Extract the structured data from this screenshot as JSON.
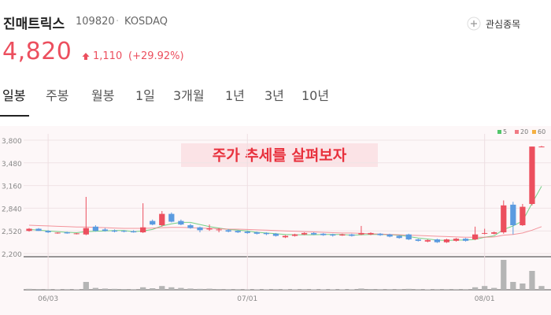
{
  "header": {
    "name": "진매트릭스",
    "code": "109820",
    "separator": "·",
    "market": "KOSDAQ",
    "watch_button": "관심종목"
  },
  "price": {
    "current": "4,820",
    "change": "1,110",
    "change_pct": "(+29.92%)"
  },
  "tabs": [
    "일봉",
    "주봉",
    "월봉",
    "1일",
    "3개월",
    "1년",
    "3년",
    "10년"
  ],
  "selected_tab": 0,
  "chart_data": {
    "type": "candlestick",
    "annotation": "주가 추세를 살펴보자",
    "categories": [
      null,
      null,
      "06/03",
      null,
      null,
      null,
      null,
      null,
      null,
      null,
      null,
      null,
      null,
      null,
      null,
      null,
      null,
      null,
      null,
      null,
      null,
      null,
      null,
      "07/01",
      null,
      null,
      null,
      null,
      null,
      null,
      null,
      null,
      null,
      null,
      null,
      null,
      null,
      null,
      null,
      null,
      null,
      null,
      null,
      null,
      null,
      null,
      null,
      null,
      "08/01",
      null,
      null,
      null,
      null,
      null,
      null
    ],
    "open": [
      2520,
      2550,
      2520,
      2490,
      2500,
      2480,
      2470,
      2580,
      2540,
      2525,
      2520,
      2515,
      2500,
      2660,
      2600,
      2760,
      2660,
      2600,
      2570,
      2540,
      2530,
      2530,
      2520,
      2510,
      2500,
      2490,
      2480,
      2430,
      2450,
      2470,
      2490,
      2480,
      2470,
      2455,
      2470,
      2470,
      2470,
      2480,
      2470,
      2450,
      2470,
      2400,
      2370,
      2400,
      2360,
      2380,
      2410,
      2400,
      2480,
      2480,
      2500,
      2890,
      2600,
      2900,
      3700
    ],
    "high": [
      2560,
      2560,
      2530,
      2500,
      2510,
      2490,
      3000,
      2600,
      2560,
      2540,
      2530,
      2530,
      2910,
      2680,
      2800,
      2780,
      2680,
      2620,
      2580,
      2610,
      2560,
      2545,
      2530,
      2520,
      2510,
      2500,
      2490,
      2460,
      2480,
      2500,
      2500,
      2490,
      2480,
      2480,
      2480,
      2590,
      2500,
      2490,
      2480,
      2460,
      2480,
      2410,
      2400,
      2410,
      2410,
      2420,
      2420,
      2580,
      2550,
      2510,
      2950,
      2930,
      2900,
      3710,
      3720
    ],
    "low": [
      2510,
      2520,
      2490,
      2480,
      2480,
      2470,
      2460,
      2510,
      2510,
      2500,
      2500,
      2495,
      2490,
      2600,
      2580,
      2640,
      2600,
      2550,
      2500,
      2520,
      2500,
      2500,
      2490,
      2480,
      2470,
      2460,
      2440,
      2420,
      2440,
      2460,
      2460,
      2450,
      2440,
      2450,
      2440,
      2460,
      2460,
      2450,
      2430,
      2410,
      2390,
      2370,
      2360,
      2350,
      2350,
      2370,
      2370,
      2390,
      2470,
      2470,
      2480,
      2470,
      2590,
      2880,
      3700
    ],
    "close": [
      2550,
      2520,
      2500,
      2495,
      2485,
      2485,
      2560,
      2520,
      2520,
      2510,
      2510,
      2500,
      2570,
      2610,
      2760,
      2650,
      2610,
      2560,
      2530,
      2555,
      2540,
      2510,
      2500,
      2490,
      2480,
      2475,
      2450,
      2450,
      2470,
      2490,
      2470,
      2460,
      2455,
      2470,
      2450,
      2490,
      2490,
      2460,
      2440,
      2420,
      2400,
      2380,
      2390,
      2360,
      2400,
      2410,
      2380,
      2470,
      2490,
      2500,
      2880,
      2600,
      2860,
      3710,
      3710
    ],
    "volume": [
      30,
      25,
      20,
      15,
      20,
      15,
      250,
      60,
      40,
      30,
      25,
      20,
      80,
      50,
      120,
      80,
      60,
      40,
      30,
      35,
      25,
      20,
      20,
      15,
      15,
      15,
      20,
      15,
      15,
      20,
      15,
      15,
      15,
      15,
      15,
      40,
      25,
      20,
      20,
      20,
      30,
      20,
      15,
      20,
      20,
      20,
      20,
      80,
      120,
      60,
      950,
      250,
      200,
      600,
      120
    ],
    "up_color": "#ec4f5e",
    "down_color": "#5b9be0",
    "moving_averages": [
      {
        "name": "5",
        "color": "#52c66a",
        "values": [
          2540,
          2530,
          2520,
          2510,
          2500,
          2495,
          2510,
          2515,
          2520,
          2525,
          2525,
          2510,
          2520,
          2540,
          2590,
          2620,
          2640,
          2640,
          2610,
          2580,
          2560,
          2540,
          2530,
          2520,
          2500,
          2490,
          2480,
          2470,
          2465,
          2465,
          2465,
          2470,
          2470,
          2470,
          2460,
          2465,
          2470,
          2470,
          2465,
          2460,
          2440,
          2420,
          2405,
          2390,
          2385,
          2390,
          2390,
          2400,
          2430,
          2450,
          2540,
          2590,
          2660,
          2910,
          3150
        ]
      },
      {
        "name": "20",
        "color": "#f07a84",
        "values": [
          2600,
          2595,
          2590,
          2585,
          2580,
          2575,
          2575,
          2570,
          2565,
          2560,
          2555,
          2555,
          2555,
          2560,
          2565,
          2570,
          2570,
          2565,
          2560,
          2555,
          2550,
          2545,
          2545,
          2540,
          2535,
          2530,
          2525,
          2520,
          2515,
          2510,
          2505,
          2500,
          2495,
          2490,
          2490,
          2485,
          2480,
          2475,
          2470,
          2465,
          2460,
          2455,
          2450,
          2445,
          2440,
          2435,
          2430,
          2430,
          2430,
          2435,
          2460,
          2470,
          2490,
          2530,
          2580
        ]
      },
      {
        "name": "60",
        "color": "#f5b041"
      }
    ],
    "ylim": [
      2200,
      3800
    ],
    "yticks": [
      {
        "value": 3800,
        "label": "3,800"
      },
      {
        "value": 3480,
        "label": "3,480"
      },
      {
        "value": 3160,
        "label": "3,160"
      },
      {
        "value": 2840,
        "label": "2,840"
      },
      {
        "value": 2520,
        "label": "2,520"
      },
      {
        "value": 2200,
        "label": "2,200"
      }
    ],
    "grid": true
  }
}
